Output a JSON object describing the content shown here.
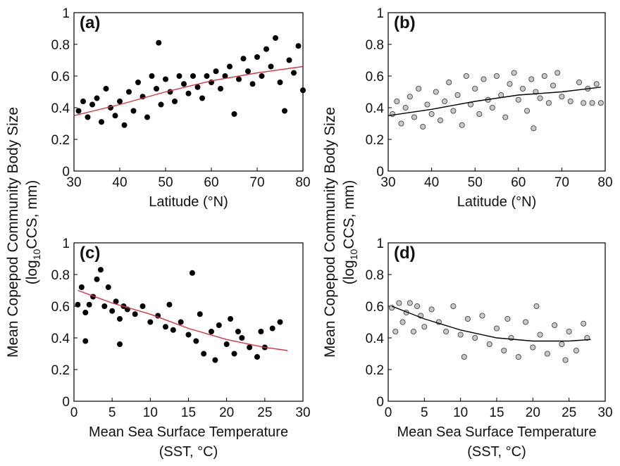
{
  "figure": {
    "ylabel_line1": "Mean Copepod Community Body Size",
    "ylabel_line2_pre": "(log",
    "ylabel_line2_sub": "10",
    "ylabel_line2_post": "CCS, mm)"
  },
  "chart_data": [
    {
      "panel": "(a)",
      "type": "scatter",
      "xlabel": "Latitude (°N)",
      "xlabel2": "",
      "xlim": [
        30,
        80
      ],
      "xticks": [
        "30",
        "40",
        "50",
        "60",
        "70",
        "80"
      ],
      "ylim": [
        0,
        1
      ],
      "yticks": [
        "0",
        "0.2",
        "0.4",
        "0.6",
        "0.8",
        "1"
      ],
      "grid": false,
      "marker": {
        "fill": "#000000",
        "stroke": "#000000"
      },
      "trend": {
        "color": "#e0303a",
        "points": [
          [
            30,
            0.35
          ],
          [
            40,
            0.42
          ],
          [
            50,
            0.5
          ],
          [
            60,
            0.57
          ],
          [
            70,
            0.62
          ],
          [
            80,
            0.66
          ]
        ]
      },
      "points": [
        [
          31,
          0.38
        ],
        [
          32,
          0.44
        ],
        [
          33,
          0.34
        ],
        [
          34,
          0.42
        ],
        [
          35,
          0.46
        ],
        [
          36,
          0.31
        ],
        [
          37,
          0.52
        ],
        [
          38,
          0.4
        ],
        [
          39,
          0.35
        ],
        [
          40,
          0.44
        ],
        [
          41,
          0.29
        ],
        [
          42,
          0.5
        ],
        [
          43,
          0.38
        ],
        [
          44,
          0.56
        ],
        [
          45,
          0.47
        ],
        [
          46,
          0.34
        ],
        [
          47,
          0.6
        ],
        [
          48,
          0.52
        ],
        [
          48.5,
          0.81
        ],
        [
          49,
          0.42
        ],
        [
          50,
          0.58
        ],
        [
          51,
          0.5
        ],
        [
          52,
          0.44
        ],
        [
          53,
          0.6
        ],
        [
          54,
          0.55
        ],
        [
          55,
          0.49
        ],
        [
          56,
          0.6
        ],
        [
          57,
          0.53
        ],
        [
          58,
          0.46
        ],
        [
          59,
          0.6
        ],
        [
          60,
          0.56
        ],
        [
          61,
          0.63
        ],
        [
          62,
          0.52
        ],
        [
          63,
          0.6
        ],
        [
          64,
          0.66
        ],
        [
          65,
          0.36
        ],
        [
          66,
          0.58
        ],
        [
          67,
          0.71
        ],
        [
          68,
          0.63
        ],
        [
          69,
          0.55
        ],
        [
          70,
          0.72
        ],
        [
          71,
          0.6
        ],
        [
          72,
          0.77
        ],
        [
          73,
          0.66
        ],
        [
          74,
          0.84
        ],
        [
          75,
          0.56
        ],
        [
          76,
          0.38
        ],
        [
          77,
          0.7
        ],
        [
          78,
          0.62
        ],
        [
          79,
          0.79
        ],
        [
          80,
          0.51
        ]
      ]
    },
    {
      "panel": "(b)",
      "type": "scatter",
      "xlabel": "Latitude (°N)",
      "xlabel2": "",
      "xlim": [
        30,
        80
      ],
      "xticks": [
        "30",
        "40",
        "50",
        "60",
        "70",
        "80"
      ],
      "ylim": [
        0,
        1
      ],
      "yticks": [
        "0",
        "0.2",
        "0.4",
        "0.6",
        "0.8",
        "1"
      ],
      "grid": false,
      "marker": {
        "fill": "#c8c8c8",
        "stroke": "#333333"
      },
      "trend": {
        "color": "#000000",
        "points": [
          [
            30,
            0.35
          ],
          [
            40,
            0.39
          ],
          [
            50,
            0.44
          ],
          [
            60,
            0.48
          ],
          [
            70,
            0.5
          ],
          [
            79,
            0.53
          ]
        ]
      },
      "points": [
        [
          31,
          0.36
        ],
        [
          32,
          0.44
        ],
        [
          33,
          0.3
        ],
        [
          34,
          0.4
        ],
        [
          35,
          0.47
        ],
        [
          36,
          0.34
        ],
        [
          37,
          0.52
        ],
        [
          38,
          0.28
        ],
        [
          39,
          0.42
        ],
        [
          40,
          0.36
        ],
        [
          41,
          0.5
        ],
        [
          42,
          0.32
        ],
        [
          43,
          0.44
        ],
        [
          44,
          0.56
        ],
        [
          45,
          0.38
        ],
        [
          46,
          0.48
        ],
        [
          47,
          0.29
        ],
        [
          48,
          0.6
        ],
        [
          49,
          0.42
        ],
        [
          50,
          0.52
        ],
        [
          51,
          0.36
        ],
        [
          52,
          0.58
        ],
        [
          53,
          0.45
        ],
        [
          54,
          0.4
        ],
        [
          55,
          0.6
        ],
        [
          56,
          0.48
        ],
        [
          57,
          0.34
        ],
        [
          58,
          0.55
        ],
        [
          59,
          0.62
        ],
        [
          60,
          0.45
        ],
        [
          61,
          0.52
        ],
        [
          62,
          0.38
        ],
        [
          63,
          0.58
        ],
        [
          63.5,
          0.27
        ],
        [
          64,
          0.5
        ],
        [
          65,
          0.46
        ],
        [
          66,
          0.6
        ],
        [
          67,
          0.43
        ],
        [
          68,
          0.54
        ],
        [
          69,
          0.62
        ],
        [
          70,
          0.47
        ],
        [
          72,
          0.44
        ],
        [
          74,
          0.56
        ],
        [
          75,
          0.43
        ],
        [
          76,
          0.52
        ],
        [
          77,
          0.43
        ],
        [
          78,
          0.55
        ],
        [
          79,
          0.43
        ]
      ]
    },
    {
      "panel": "(c)",
      "type": "scatter",
      "xlabel": "Mean Sea Surface Temperature",
      "xlabel2": "(SST, °C)",
      "xlim": [
        0,
        30
      ],
      "xticks": [
        "0",
        "5",
        "10",
        "15",
        "20",
        "25",
        "30"
      ],
      "ylim": [
        0,
        1
      ],
      "yticks": [
        "0",
        "0.2",
        "0.4",
        "0.6",
        "0.8",
        "1"
      ],
      "grid": false,
      "marker": {
        "fill": "#000000",
        "stroke": "#000000"
      },
      "trend": {
        "color": "#e0303a",
        "points": [
          [
            0.5,
            0.7
          ],
          [
            5,
            0.62
          ],
          [
            10,
            0.55
          ],
          [
            15,
            0.46
          ],
          [
            20,
            0.39
          ],
          [
            25,
            0.34
          ],
          [
            28,
            0.32
          ]
        ]
      },
      "points": [
        [
          0.5,
          0.61
        ],
        [
          1,
          0.72
        ],
        [
          1.5,
          0.56
        ],
        [
          2,
          0.61
        ],
        [
          2.5,
          0.66
        ],
        [
          3,
          0.77
        ],
        [
          3.5,
          0.83
        ],
        [
          4,
          0.6
        ],
        [
          4.5,
          0.72
        ],
        [
          5,
          0.57
        ],
        [
          5.5,
          0.63
        ],
        [
          6,
          0.52
        ],
        [
          6.5,
          0.6
        ],
        [
          7,
          0.58
        ],
        [
          8,
          0.55
        ],
        [
          9,
          0.6
        ],
        [
          10,
          0.5
        ],
        [
          11,
          0.54
        ],
        [
          12,
          0.47
        ],
        [
          12.5,
          0.61
        ],
        [
          13,
          0.45
        ],
        [
          14,
          0.5
        ],
        [
          15,
          0.42
        ],
        [
          15.5,
          0.81
        ],
        [
          16,
          0.38
        ],
        [
          16.5,
          0.55
        ],
        [
          17,
          0.3
        ],
        [
          18,
          0.44
        ],
        [
          18.5,
          0.26
        ],
        [
          19,
          0.48
        ],
        [
          20,
          0.36
        ],
        [
          20.5,
          0.52
        ],
        [
          21,
          0.3
        ],
        [
          21.5,
          0.44
        ],
        [
          22,
          0.4
        ],
        [
          23,
          0.34
        ],
        [
          24,
          0.28
        ],
        [
          24.5,
          0.44
        ],
        [
          25,
          0.34
        ],
        [
          26,
          0.46
        ],
        [
          27,
          0.5
        ],
        [
          1.5,
          0.38
        ],
        [
          6,
          0.36
        ]
      ]
    },
    {
      "panel": "(d)",
      "type": "scatter",
      "xlabel": "Mean Sea Surface Temperature",
      "xlabel2": "(SST, °C)",
      "xlim": [
        0,
        30
      ],
      "xticks": [
        "0",
        "5",
        "10",
        "15",
        "20",
        "25",
        "30"
      ],
      "ylim": [
        0,
        1
      ],
      "yticks": [
        "0",
        "0.2",
        "0.4",
        "0.6",
        "0.8",
        "1"
      ],
      "grid": false,
      "marker": {
        "fill": "#c8c8c8",
        "stroke": "#333333"
      },
      "trend": {
        "color": "#000000",
        "points": [
          [
            0.5,
            0.6
          ],
          [
            5,
            0.52
          ],
          [
            10,
            0.45
          ],
          [
            15,
            0.4
          ],
          [
            20,
            0.38
          ],
          [
            25,
            0.38
          ],
          [
            28,
            0.39
          ]
        ]
      },
      "points": [
        [
          0.5,
          0.59
        ],
        [
          1,
          0.44
        ],
        [
          1.5,
          0.62
        ],
        [
          2,
          0.5
        ],
        [
          2.5,
          0.56
        ],
        [
          3,
          0.62
        ],
        [
          3.5,
          0.44
        ],
        [
          4,
          0.6
        ],
        [
          4.5,
          0.54
        ],
        [
          5,
          0.47
        ],
        [
          6,
          0.58
        ],
        [
          7,
          0.5
        ],
        [
          8,
          0.44
        ],
        [
          9,
          0.6
        ],
        [
          10,
          0.42
        ],
        [
          10.5,
          0.28
        ],
        [
          11,
          0.52
        ],
        [
          12,
          0.4
        ],
        [
          13,
          0.54
        ],
        [
          14,
          0.36
        ],
        [
          15,
          0.46
        ],
        [
          16,
          0.32
        ],
        [
          16.5,
          0.52
        ],
        [
          17,
          0.4
        ],
        [
          18,
          0.28
        ],
        [
          19,
          0.5
        ],
        [
          20,
          0.34
        ],
        [
          20.5,
          0.6
        ],
        [
          21,
          0.42
        ],
        [
          22,
          0.3
        ],
        [
          23,
          0.48
        ],
        [
          24,
          0.36
        ],
        [
          24.5,
          0.26
        ],
        [
          25,
          0.44
        ],
        [
          26,
          0.32
        ],
        [
          27,
          0.49
        ],
        [
          27.5,
          0.4
        ]
      ]
    }
  ]
}
